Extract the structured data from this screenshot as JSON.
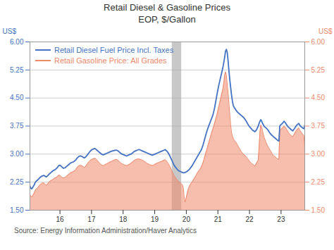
{
  "chart_data": {
    "type": "line",
    "title": "Retail Diesel & Gasoline Prices\nEOP, $/Gallon",
    "ylabel": "US$",
    "y2label": "US$",
    "caption": "Source:  Energy Information Administration/Haver Analytics",
    "xlim": [
      15.05,
      23.75
    ],
    "xticks": [
      16,
      17,
      18,
      19,
      20,
      21,
      22,
      23
    ],
    "ylim": [
      1.5,
      6.0
    ],
    "yticks": [
      {
        "value": 1.5,
        "label": "1.50"
      },
      {
        "value": 2.25,
        "label": "2.25"
      },
      {
        "value": 3.0,
        "label": "3.00"
      },
      {
        "value": 3.75,
        "label": "3.75"
      },
      {
        "value": 4.5,
        "label": "4.50"
      },
      {
        "value": 5.25,
        "label": "5.25"
      },
      {
        "value": 6.0,
        "label": "6.00"
      }
    ],
    "y2lim": [
      1.5,
      6.0
    ],
    "y2ticks": [
      {
        "value": 1.5,
        "label": "1.50"
      },
      {
        "value": 2.25,
        "label": "2.25"
      },
      {
        "value": 3.0,
        "label": "3.00"
      },
      {
        "value": 3.75,
        "label": "3.75"
      },
      {
        "value": 4.5,
        "label": "4.50"
      },
      {
        "value": 5.25,
        "label": "5.25"
      },
      {
        "value": 6.0,
        "label": "6.00"
      }
    ],
    "grid": "y",
    "legend": "upper left",
    "bands": [
      {
        "x0": 19.55,
        "x1": 19.85,
        "color": "#aaaaaa"
      }
    ],
    "x": [
      15.05,
      15.0773,
      15.1045,
      15.1318,
      15.1591,
      15.1864,
      15.2136,
      15.2409,
      15.2682,
      15.2955,
      15.3227,
      15.35,
      15.3773,
      15.4045,
      15.4318,
      15.4591,
      15.4864,
      15.5136,
      15.5409,
      15.5682,
      15.5955,
      15.6227,
      15.65,
      15.6773,
      15.7045,
      15.7318,
      15.7591,
      15.7864,
      15.8136,
      15.8409,
      15.8682,
      15.8955,
      15.9227,
      15.95,
      15.9773,
      16.0045,
      16.0318,
      16.0591,
      16.0864,
      16.1136,
      16.1409,
      16.1682,
      16.1955,
      16.2227,
      16.25,
      16.2773,
      16.3045,
      16.3318,
      16.3591,
      16.3864,
      16.4136,
      16.4409,
      16.4682,
      16.4955,
      16.5227,
      16.55,
      16.5773,
      16.6045,
      16.6318,
      16.6591,
      16.6864,
      16.7136,
      16.7409,
      16.7682,
      16.7955,
      16.8227,
      16.85,
      16.8773,
      16.9045,
      16.9318,
      16.9591,
      16.9864,
      17.0136,
      17.0409,
      17.0682,
      17.0955,
      17.1227,
      17.15,
      17.1773,
      17.2045,
      17.2318,
      17.2591,
      17.2864,
      17.3136,
      17.3409,
      17.3682,
      17.3955,
      17.4227,
      17.45,
      17.4773,
      17.5045,
      17.5318,
      17.5591,
      17.5864,
      17.6136,
      17.6409,
      17.6682,
      17.6955,
      17.7227,
      17.75,
      17.7773,
      17.8045,
      17.8318,
      17.8591,
      17.8864,
      17.9136,
      17.9409,
      17.9682,
      17.9955,
      18.0227,
      18.05,
      18.0773,
      18.1045,
      18.1318,
      18.1591,
      18.1864,
      18.2136,
      18.2409,
      18.2682,
      18.2955,
      18.3227,
      18.35,
      18.3773,
      18.4045,
      18.4318,
      18.4591,
      18.4864,
      18.5136,
      18.5409,
      18.5682,
      18.5955,
      18.6227,
      18.65,
      18.6773,
      18.7045,
      18.7318,
      18.7591,
      18.7864,
      18.8136,
      18.8409,
      18.8682,
      18.8955,
      18.9227,
      18.95,
      18.9773,
      19.0045,
      19.0318,
      19.0591,
      19.0864,
      19.1136,
      19.1409,
      19.1682,
      19.1955,
      19.2227,
      19.25,
      19.2773,
      19.3045,
      19.3318,
      19.3591,
      19.3864,
      19.4136,
      19.4409,
      19.4682,
      19.4955,
      19.5227,
      19.55,
      19.5773,
      19.6045,
      19.6318,
      19.6591,
      19.6864,
      19.7136,
      19.7409,
      19.7682,
      19.7955,
      19.8227,
      19.85,
      19.8773,
      19.9045,
      19.9318,
      19.9591,
      19.9864,
      20.0136,
      20.0409,
      20.0682,
      20.0955,
      20.1227,
      20.15,
      20.1773,
      20.2045,
      20.2318,
      20.2591,
      20.2864,
      20.3136,
      20.3409,
      20.3682,
      20.3955,
      20.4227,
      20.45,
      20.4773,
      20.5045,
      20.5318,
      20.5591,
      20.5864,
      20.6136,
      20.6409,
      20.6682,
      20.6955,
      20.7227,
      20.75,
      20.7773,
      20.8045,
      20.8318,
      20.8591,
      20.8864,
      20.9136,
      20.9409,
      20.9682,
      20.9955,
      21.0227,
      21.05,
      21.0773,
      21.1045,
      21.1318,
      21.1591,
      21.1864,
      21.2136,
      21.2409,
      21.2682,
      21.2955,
      21.3227,
      21.35,
      21.3773,
      21.4045,
      21.4318,
      21.4591,
      21.4864,
      21.5136,
      21.5409,
      21.5682,
      21.5955,
      21.6227,
      21.65,
      21.6773,
      21.7045,
      21.7318,
      21.7591,
      21.7864,
      21.8136,
      21.8409,
      21.8682,
      21.8955,
      21.9227,
      21.95,
      21.9773,
      22.0045,
      22.0318,
      22.0591,
      22.0864,
      22.1136,
      22.1409,
      22.1682,
      22.1955,
      22.2227,
      22.25,
      22.2773,
      22.3045,
      22.3318,
      22.3591,
      22.3864,
      22.4136,
      22.4409,
      22.4682,
      22.4955,
      22.5227,
      22.55,
      22.5773,
      22.6045,
      22.6318,
      22.6591,
      22.6864,
      22.7136,
      22.7409,
      22.7682,
      22.7955,
      22.8227,
      22.85,
      22.8773,
      22.9045,
      22.9318,
      22.9591,
      22.9864,
      23.0136,
      23.0409,
      23.0682,
      23.0955,
      23.1227,
      23.15,
      23.1773,
      23.2045,
      23.2318,
      23.2591,
      23.2864,
      23.3136,
      23.3409,
      23.3682,
      23.3955,
      23.4227,
      23.45,
      23.4773,
      23.5045,
      23.5318,
      23.5591,
      23.5864,
      23.6136,
      23.6409,
      23.6682,
      23.6955,
      23.7227,
      23.75
    ],
    "series": [
      {
        "name": "Retail Diesel Fuel Price Incl. Taxes",
        "color": "#4472c4",
        "type": "line",
        "values": [
          2.15,
          2.09,
          2.07,
          2.1,
          2.14,
          2.18,
          2.24,
          2.27,
          2.29,
          2.31,
          2.33,
          2.36,
          2.38,
          2.4,
          2.41,
          2.42,
          2.43,
          2.42,
          2.4,
          2.39,
          2.41,
          2.43,
          2.46,
          2.48,
          2.5,
          2.52,
          2.54,
          2.56,
          2.57,
          2.58,
          2.6,
          2.62,
          2.65,
          2.68,
          2.7,
          2.7,
          2.68,
          2.66,
          2.64,
          2.62,
          2.63,
          2.64,
          2.66,
          2.68,
          2.7,
          2.72,
          2.74,
          2.76,
          2.77,
          2.78,
          2.79,
          2.8,
          2.82,
          2.84,
          2.87,
          2.9,
          2.92,
          2.94,
          2.95,
          2.95,
          2.94,
          2.93,
          2.91,
          2.9,
          2.91,
          2.93,
          2.96,
          2.99,
          3.02,
          3.05,
          3.08,
          3.1,
          3.12,
          3.13,
          3.14,
          3.15,
          3.14,
          3.12,
          3.1,
          3.08,
          3.06,
          3.04,
          3.02,
          3.0,
          2.99,
          2.98,
          2.99,
          3.0,
          3.01,
          3.02,
          3.03,
          3.04,
          3.05,
          3.06,
          3.07,
          3.08,
          3.09,
          3.09,
          3.1,
          3.1,
          3.11,
          3.1,
          3.09,
          3.07,
          3.05,
          3.03,
          3.01,
          3.0,
          2.99,
          2.98,
          2.97,
          2.96,
          2.95,
          2.96,
          2.97,
          2.98,
          2.99,
          3.0,
          3.01,
          3.03,
          3.05,
          3.07,
          3.08,
          3.09,
          3.1,
          3.11,
          3.12,
          3.12,
          3.11,
          3.1,
          3.09,
          3.08,
          3.07,
          3.06,
          3.05,
          3.04,
          3.03,
          3.02,
          3.01,
          3.0,
          2.99,
          2.98,
          2.97,
          2.98,
          2.99,
          3.0,
          3.01,
          3.02,
          3.03,
          3.04,
          3.05,
          3.06,
          3.07,
          3.08,
          3.09,
          3.1,
          3.11,
          3.12,
          3.1,
          3.08,
          3.05,
          3.01,
          2.97,
          2.92,
          2.87,
          2.82,
          2.77,
          2.72,
          2.68,
          2.65,
          2.62,
          2.59,
          2.57,
          2.55,
          2.54,
          2.53,
          2.52,
          2.51,
          2.5,
          2.5,
          2.51,
          2.52,
          2.53,
          2.55,
          2.57,
          2.59,
          2.62,
          2.65,
          2.68,
          2.72,
          2.76,
          2.8,
          2.84,
          2.88,
          2.92,
          2.96,
          3.0,
          3.04,
          3.08,
          3.12,
          3.18,
          3.25,
          3.33,
          3.42,
          3.5,
          3.58,
          3.65,
          3.72,
          3.78,
          3.84,
          3.9,
          3.96,
          4.02,
          4.1,
          4.2,
          4.32,
          4.45,
          4.58,
          4.7,
          4.82,
          4.92,
          5.02,
          5.12,
          5.22,
          5.32,
          5.45,
          5.58,
          5.75,
          5.8,
          5.72,
          5.5,
          5.22,
          4.98,
          4.78,
          4.58,
          4.42,
          4.3,
          4.25,
          4.22,
          4.18,
          4.15,
          4.12,
          4.1,
          4.08,
          4.06,
          4.04,
          4.02,
          4.0,
          3.98,
          3.95,
          3.92,
          3.88,
          3.84,
          3.8,
          3.76,
          3.73,
          3.7,
          3.68,
          3.65,
          3.63,
          3.62,
          3.6,
          3.62,
          3.65,
          3.7,
          3.75,
          3.82,
          3.88,
          3.92,
          3.88,
          3.82,
          3.78,
          3.74,
          3.72,
          3.7,
          3.68,
          3.65,
          3.62,
          3.58,
          3.55,
          3.52,
          3.5,
          3.48,
          3.46,
          3.44,
          3.42,
          3.4,
          3.38,
          3.36,
          3.35,
          3.75,
          3.78,
          3.8,
          3.82,
          3.85,
          3.88,
          3.85,
          3.82,
          3.78,
          3.75,
          3.72,
          3.7,
          3.68,
          3.66,
          3.64,
          3.62,
          3.65,
          3.68,
          3.72,
          3.75,
          3.78,
          3.8,
          3.82,
          3.78,
          3.75,
          3.73,
          3.71,
          3.69,
          3.68,
          3.77
        ]
      },
      {
        "name": "Retail Gasoline Price: All Grades",
        "color": "#f0886a",
        "type": "area",
        "values": [
          1.92,
          1.88,
          1.85,
          1.88,
          1.92,
          1.97,
          2.02,
          2.06,
          2.08,
          2.1,
          2.13,
          2.16,
          2.18,
          2.2,
          2.22,
          2.23,
          2.23,
          2.21,
          2.19,
          2.17,
          2.19,
          2.22,
          2.25,
          2.27,
          2.29,
          2.3,
          2.31,
          2.33,
          2.35,
          2.36,
          2.37,
          2.38,
          2.41,
          2.43,
          2.44,
          2.43,
          2.41,
          2.38,
          2.37,
          2.36,
          2.37,
          2.38,
          2.4,
          2.42,
          2.44,
          2.46,
          2.48,
          2.5,
          2.51,
          2.52,
          2.53,
          2.54,
          2.56,
          2.58,
          2.62,
          2.65,
          2.67,
          2.69,
          2.7,
          2.7,
          2.69,
          2.68,
          2.66,
          2.65,
          2.66,
          2.68,
          2.72,
          2.75,
          2.78,
          2.8,
          2.83,
          2.85,
          2.86,
          2.87,
          2.88,
          2.89,
          2.88,
          2.86,
          2.84,
          2.81,
          2.78,
          2.75,
          2.73,
          2.71,
          2.7,
          2.69,
          2.7,
          2.72,
          2.73,
          2.74,
          2.75,
          2.76,
          2.78,
          2.79,
          2.8,
          2.81,
          2.82,
          2.83,
          2.84,
          2.85,
          2.86,
          2.85,
          2.84,
          2.82,
          2.8,
          2.77,
          2.75,
          2.74,
          2.73,
          2.72,
          2.71,
          2.7,
          2.69,
          2.7,
          2.71,
          2.72,
          2.74,
          2.75,
          2.77,
          2.79,
          2.81,
          2.83,
          2.84,
          2.85,
          2.86,
          2.87,
          2.87,
          2.87,
          2.86,
          2.85,
          2.84,
          2.83,
          2.82,
          2.8,
          2.79,
          2.77,
          2.75,
          2.74,
          2.73,
          2.72,
          2.71,
          2.7,
          2.69,
          2.7,
          2.71,
          2.73,
          2.74,
          2.75,
          2.76,
          2.77,
          2.78,
          2.79,
          2.8,
          2.81,
          2.82,
          2.83,
          2.84,
          2.85,
          2.83,
          2.8,
          2.77,
          2.73,
          2.69,
          2.64,
          2.59,
          2.54,
          2.49,
          2.44,
          2.4,
          2.37,
          2.34,
          2.31,
          2.28,
          2.26,
          2.24,
          2.22,
          2.2,
          2.18,
          2.1,
          1.85,
          1.72,
          1.8,
          1.9,
          2.0,
          2.08,
          2.14,
          2.18,
          2.22,
          2.25,
          2.28,
          2.32,
          2.36,
          2.4,
          2.44,
          2.48,
          2.52,
          2.55,
          2.58,
          2.62,
          2.66,
          2.72,
          2.78,
          2.86,
          2.94,
          3.02,
          3.1,
          3.18,
          3.26,
          3.34,
          3.42,
          3.5,
          3.58,
          3.65,
          3.72,
          3.8,
          3.88,
          3.96,
          4.05,
          4.15,
          4.25,
          4.35,
          4.45,
          4.55,
          4.65,
          4.75,
          4.9,
          5.1,
          5.2,
          5.1,
          4.88,
          4.62,
          4.35,
          4.05,
          3.78,
          3.58,
          3.48,
          3.42,
          3.38,
          3.35,
          3.32,
          3.28,
          3.24,
          3.2,
          3.16,
          3.12,
          3.08,
          3.05,
          3.02,
          3.0,
          2.98,
          2.96,
          2.93,
          2.9,
          2.87,
          2.84,
          2.81,
          2.78,
          2.76,
          2.74,
          2.72,
          2.7,
          2.68,
          2.72,
          2.76,
          2.8,
          2.84,
          3.18,
          3.6,
          3.78,
          3.72,
          3.62,
          3.52,
          3.44,
          3.38,
          3.32,
          3.26,
          3.22,
          3.18,
          3.14,
          3.1,
          3.06,
          3.02,
          2.98,
          2.96,
          2.94,
          2.92,
          2.9,
          2.88,
          2.87,
          2.86,
          3.62,
          3.65,
          3.68,
          3.7,
          3.72,
          3.75,
          3.73,
          3.7,
          3.66,
          3.62,
          3.58,
          3.55,
          3.52,
          3.5,
          3.48,
          3.46,
          3.5,
          3.54,
          3.58,
          3.62,
          3.66,
          3.68,
          3.7,
          3.65,
          3.62,
          3.58,
          3.55,
          3.52,
          3.5,
          3.07
        ]
      }
    ]
  }
}
